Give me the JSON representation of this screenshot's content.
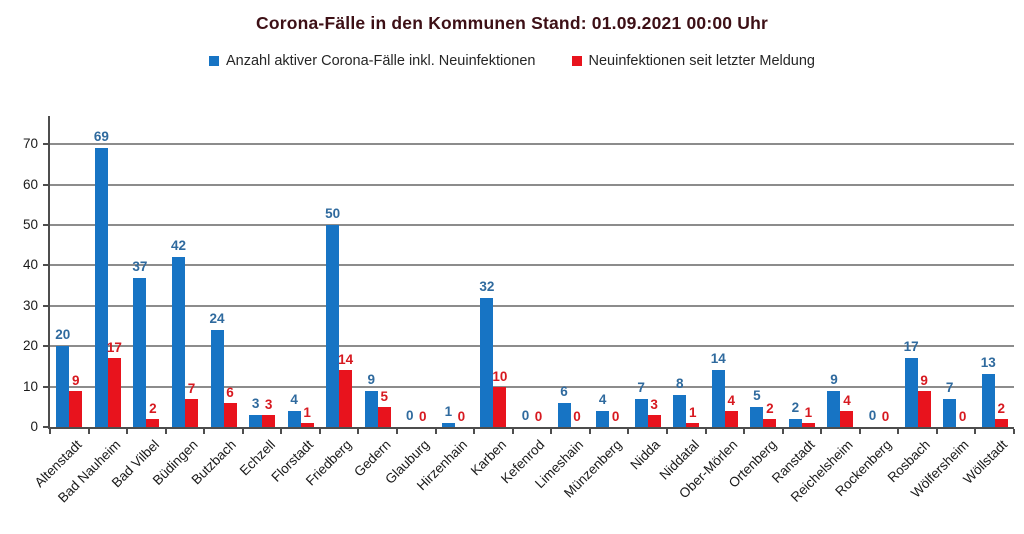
{
  "chart_data": {
    "type": "bar",
    "title": "Corona-Fälle in den Kommunen Stand: 01.09.2021 00:00 Uhr",
    "categories": [
      "Altenstadt",
      "Bad Nauheim",
      "Bad Vilbel",
      "Büdingen",
      "Butzbach",
      "Echzell",
      "Florstadt",
      "Friedberg",
      "Gedern",
      "Glauburg",
      "Hirzenhain",
      "Karben",
      "Kefenrod",
      "Limeshain",
      "Münzenberg",
      "Nidda",
      "Niddatal",
      "Ober-Mörlen",
      "Ortenberg",
      "Ranstadt",
      "Reichelsheim",
      "Rockenberg",
      "Rosbach",
      "Wölfersheim",
      "Wöllstadt"
    ],
    "series": [
      {
        "name": "Anzahl aktiver Corona-Fälle inkl. Neuinfektionen",
        "color": "#1774C4",
        "label_color": "#2F6A9E",
        "values": [
          20,
          69,
          37,
          42,
          24,
          3,
          4,
          50,
          9,
          0,
          1,
          32,
          0,
          6,
          4,
          7,
          8,
          14,
          5,
          2,
          9,
          0,
          17,
          7,
          13
        ]
      },
      {
        "name": "Neuinfektionen seit letzter Meldung",
        "color": "#E8131D",
        "label_color": "#D71920",
        "values": [
          9,
          17,
          2,
          7,
          6,
          3,
          1,
          14,
          5,
          0,
          0,
          10,
          0,
          0,
          0,
          3,
          1,
          4,
          2,
          1,
          4,
          0,
          9,
          0,
          2
        ]
      }
    ],
    "xlabel": "",
    "ylabel": "",
    "ylim": [
      0,
      74
    ],
    "yticks": [
      0,
      10,
      20,
      30,
      40,
      50,
      60,
      70
    ],
    "grid": true,
    "legend_position": "top",
    "colors": {
      "grid": "#8C8C8C",
      "axis": "#4D4D4D",
      "title": "#3D1016",
      "text": "#1A1A1A",
      "background": "#FFFFFF"
    }
  }
}
